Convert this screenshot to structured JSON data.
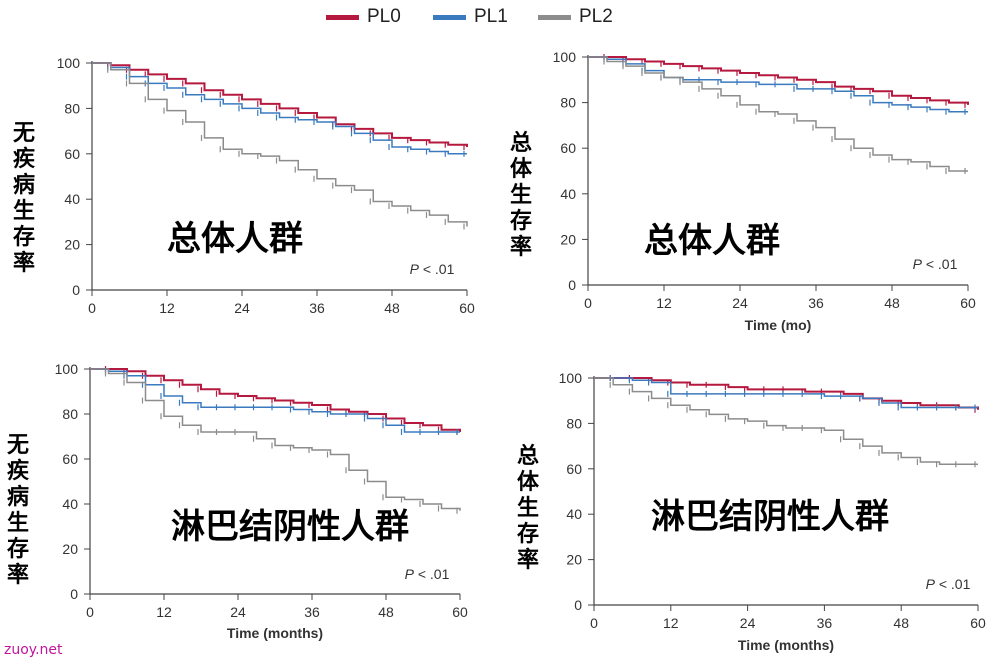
{
  "legend": [
    {
      "label": "PL0",
      "color": "#b5193f"
    },
    {
      "label": "PL1",
      "color": "#3a7abf"
    },
    {
      "label": "PL2",
      "color": "#8c8c8c"
    }
  ],
  "watermark": "zuoy.net",
  "chart_data": [
    {
      "type": "line",
      "title": "总体人群",
      "ylabel": "无疾病生存率",
      "xlabel": "",
      "pvalue": "P < .01",
      "xlim": [
        0,
        60
      ],
      "ylim": [
        0,
        100
      ],
      "xticks": [
        0,
        12,
        24,
        36,
        48,
        60
      ],
      "yticks": [
        0,
        20,
        40,
        60,
        80,
        100
      ],
      "series": [
        {
          "name": "PL0",
          "color": "#b5193f",
          "x": [
            0,
            3,
            6,
            9,
            12,
            15,
            18,
            21,
            24,
            27,
            30,
            33,
            36,
            39,
            42,
            45,
            48,
            51,
            54,
            57,
            60
          ],
          "y": [
            100,
            99,
            97,
            95,
            93,
            91,
            88,
            86,
            84,
            82,
            80,
            78,
            76,
            73,
            71,
            69,
            67,
            66,
            65,
            64,
            63
          ]
        },
        {
          "name": "PL1",
          "color": "#3a7abf",
          "x": [
            0,
            3,
            6,
            9,
            12,
            15,
            18,
            21,
            24,
            27,
            30,
            33,
            36,
            39,
            42,
            45,
            48,
            51,
            54,
            57,
            60
          ],
          "y": [
            100,
            98,
            94,
            91,
            89,
            86,
            84,
            82,
            80,
            78,
            76,
            75,
            74,
            72,
            69,
            66,
            63,
            62,
            61,
            60,
            60
          ]
        },
        {
          "name": "PL2",
          "color": "#8c8c8c",
          "x": [
            0,
            3,
            6,
            9,
            12,
            15,
            18,
            21,
            24,
            27,
            30,
            33,
            36,
            39,
            42,
            45,
            48,
            51,
            54,
            57,
            60
          ],
          "y": [
            100,
            97,
            91,
            84,
            79,
            74,
            67,
            62,
            60,
            59,
            57,
            53,
            49,
            46,
            44,
            39,
            37,
            35,
            33,
            30,
            28
          ]
        }
      ]
    },
    {
      "type": "line",
      "title": "总体人群",
      "ylabel": "总体生存率",
      "xlabel": "Time (mo)",
      "pvalue": "P < .01",
      "xlim": [
        0,
        60
      ],
      "ylim": [
        0,
        100
      ],
      "xticks": [
        0,
        12,
        24,
        36,
        48,
        60
      ],
      "yticks": [
        0,
        20,
        40,
        60,
        80,
        100
      ],
      "series": [
        {
          "name": "PL0",
          "color": "#b5193f",
          "x": [
            0,
            3,
            6,
            9,
            12,
            15,
            18,
            21,
            24,
            27,
            30,
            33,
            36,
            39,
            42,
            45,
            48,
            51,
            54,
            57,
            60
          ],
          "y": [
            100,
            100,
            99,
            98,
            97,
            96,
            95,
            94,
            93,
            92,
            91,
            90,
            89,
            87,
            86,
            85,
            83,
            82,
            81,
            80,
            79
          ]
        },
        {
          "name": "PL1",
          "color": "#3a7abf",
          "x": [
            0,
            3,
            6,
            9,
            12,
            15,
            18,
            21,
            24,
            27,
            30,
            33,
            36,
            39,
            42,
            45,
            48,
            51,
            54,
            57,
            60
          ],
          "y": [
            100,
            99,
            97,
            94,
            91,
            90,
            90,
            89,
            89,
            88,
            88,
            86,
            86,
            85,
            83,
            80,
            79,
            78,
            77,
            76,
            76
          ]
        },
        {
          "name": "PL2",
          "color": "#8c8c8c",
          "x": [
            0,
            3,
            6,
            9,
            12,
            15,
            18,
            21,
            24,
            27,
            30,
            33,
            36,
            39,
            42,
            45,
            48,
            51,
            54,
            57,
            60
          ],
          "y": [
            100,
            98,
            96,
            93,
            91,
            89,
            86,
            83,
            79,
            76,
            75,
            72,
            69,
            64,
            60,
            57,
            55,
            54,
            52,
            50,
            50
          ]
        }
      ]
    },
    {
      "type": "line",
      "title": "淋巴结阴性人群",
      "ylabel": "无疾病生存率",
      "xlabel": "Time (months)",
      "pvalue": "P < .01",
      "xlim": [
        0,
        60
      ],
      "ylim": [
        0,
        100
      ],
      "xticks": [
        0,
        12,
        24,
        36,
        48,
        60
      ],
      "yticks": [
        0,
        20,
        40,
        60,
        80,
        100
      ],
      "series": [
        {
          "name": "PL0",
          "color": "#b5193f",
          "x": [
            0,
            3,
            6,
            9,
            12,
            15,
            18,
            21,
            24,
            27,
            30,
            33,
            36,
            39,
            42,
            45,
            48,
            51,
            54,
            57,
            60
          ],
          "y": [
            100,
            100,
            99,
            97,
            95,
            93,
            91,
            89,
            88,
            87,
            86,
            85,
            84,
            82,
            81,
            80,
            78,
            76,
            75,
            73,
            72
          ]
        },
        {
          "name": "PL1",
          "color": "#3a7abf",
          "x": [
            0,
            3,
            6,
            9,
            12,
            15,
            18,
            21,
            24,
            27,
            30,
            33,
            36,
            39,
            42,
            45,
            48,
            51,
            54,
            57,
            60
          ],
          "y": [
            100,
            99,
            97,
            93,
            88,
            85,
            83,
            83,
            83,
            83,
            83,
            82,
            81,
            80,
            80,
            78,
            75,
            72,
            72,
            72,
            72
          ]
        },
        {
          "name": "PL2",
          "color": "#8c8c8c",
          "x": [
            0,
            3,
            6,
            9,
            12,
            15,
            18,
            21,
            24,
            27,
            30,
            33,
            36,
            39,
            42,
            45,
            48,
            51,
            54,
            57,
            60
          ],
          "y": [
            100,
            98,
            94,
            86,
            79,
            75,
            72,
            72,
            72,
            69,
            66,
            65,
            64,
            62,
            55,
            50,
            43,
            42,
            40,
            38,
            37
          ]
        }
      ]
    },
    {
      "type": "line",
      "title": "淋巴结阴性人群",
      "ylabel": "总体生存率",
      "xlabel": "Time (months)",
      "pvalue": "P < .01",
      "xlim": [
        0,
        60
      ],
      "ylim": [
        0,
        100
      ],
      "xticks": [
        0,
        12,
        24,
        36,
        48,
        60
      ],
      "yticks": [
        0,
        20,
        40,
        60,
        80,
        100
      ],
      "series": [
        {
          "name": "PL0",
          "color": "#b5193f",
          "x": [
            0,
            3,
            6,
            9,
            12,
            15,
            18,
            21,
            24,
            27,
            30,
            33,
            36,
            39,
            42,
            45,
            48,
            51,
            54,
            57,
            60
          ],
          "y": [
            100,
            100,
            100,
            99,
            98,
            97,
            97,
            96,
            95,
            95,
            95,
            94,
            94,
            93,
            91,
            90,
            89,
            88,
            88,
            87,
            86
          ]
        },
        {
          "name": "PL1",
          "color": "#3a7abf",
          "x": [
            0,
            3,
            6,
            9,
            12,
            15,
            18,
            21,
            24,
            27,
            30,
            33,
            36,
            39,
            42,
            45,
            48,
            51,
            54,
            57,
            60
          ],
          "y": [
            100,
            100,
            99,
            98,
            93,
            93,
            93,
            93,
            93,
            93,
            93,
            93,
            92,
            92,
            91,
            89,
            87,
            87,
            87,
            87,
            87
          ]
        },
        {
          "name": "PL2",
          "color": "#8c8c8c",
          "x": [
            0,
            3,
            6,
            9,
            12,
            15,
            18,
            21,
            24,
            27,
            30,
            33,
            36,
            39,
            42,
            45,
            48,
            51,
            54,
            57,
            60
          ],
          "y": [
            100,
            97,
            94,
            91,
            88,
            86,
            84,
            82,
            81,
            79,
            78,
            78,
            77,
            73,
            70,
            67,
            65,
            63,
            62,
            62,
            62
          ]
        }
      ]
    }
  ]
}
